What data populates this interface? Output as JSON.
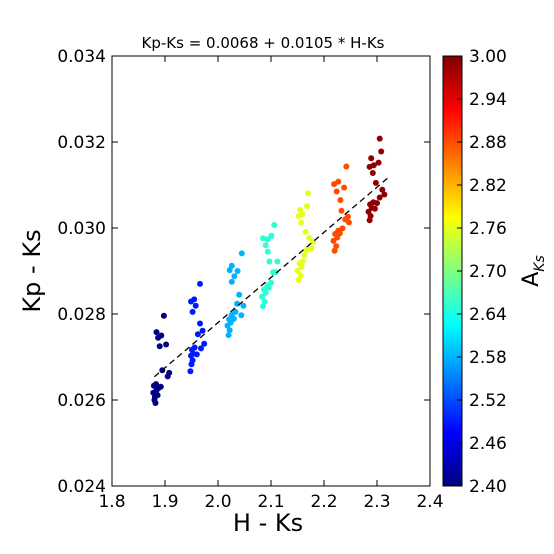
{
  "chart_data": {
    "type": "scatter",
    "title": "Kp-Ks = 0.0068 + 0.0105 * H-Ks",
    "xlabel": "H - Ks",
    "ylabel": "Kp - Ks",
    "xlim": [
      1.8,
      2.4
    ],
    "ylim": [
      0.024,
      0.034
    ],
    "xticks": [
      "1.8",
      "1.9",
      "2.0",
      "2.1",
      "2.2",
      "2.3",
      "2.4"
    ],
    "yticks": [
      "0.024",
      "0.026",
      "0.028",
      "0.030",
      "0.032",
      "0.034"
    ],
    "grid": false,
    "fit_line": {
      "intercept": 0.0068,
      "slope": 0.0105,
      "x_range": [
        1.88,
        2.32
      ],
      "style": "dashed"
    },
    "colorbar": {
      "label": "A",
      "label_subscript": "Ks",
      "min": 2.4,
      "max": 3.0,
      "ticks": [
        "2.40",
        "2.46",
        "2.52",
        "2.58",
        "2.64",
        "2.70",
        "2.76",
        "2.82",
        "2.88",
        "2.94",
        "3.00"
      ],
      "colormap": "jet"
    },
    "groups": [
      {
        "c": 2.4,
        "points": [
          [
            1.88,
            0.026
          ],
          [
            1.882,
            0.02593
          ],
          [
            1.878,
            0.02617
          ],
          [
            1.884,
            0.02622
          ],
          [
            1.879,
            0.02633
          ],
          [
            1.883,
            0.02637
          ],
          [
            1.886,
            0.02611
          ],
          [
            1.888,
            0.02628
          ],
          [
            1.892,
            0.02631
          ],
          [
            1.881,
            0.02607
          ],
          [
            1.895,
            0.02669
          ],
          [
            1.905,
            0.02655
          ],
          [
            1.908,
            0.02663
          ],
          [
            1.89,
            0.02725
          ],
          [
            1.887,
            0.02745
          ],
          [
            1.893,
            0.0275
          ],
          [
            1.902,
            0.02729
          ],
          [
            1.884,
            0.02758
          ],
          [
            1.898,
            0.02796
          ]
        ]
      },
      {
        "c": 2.49,
        "points": [
          [
            1.948,
            0.02667
          ],
          [
            1.95,
            0.02683
          ],
          [
            1.952,
            0.02692
          ],
          [
            1.949,
            0.02703
          ],
          [
            1.953,
            0.02708
          ],
          [
            1.951,
            0.02717
          ],
          [
            1.956,
            0.02722
          ],
          [
            1.96,
            0.02706
          ],
          [
            1.968,
            0.0272
          ],
          [
            1.974,
            0.02731
          ],
          [
            1.962,
            0.02753
          ],
          [
            1.971,
            0.02761
          ],
          [
            1.966,
            0.02778
          ],
          [
            1.952,
            0.02805
          ],
          [
            1.958,
            0.02819
          ],
          [
            1.949,
            0.02829
          ],
          [
            1.955,
            0.02834
          ],
          [
            1.966,
            0.0287
          ]
        ]
      },
      {
        "c": 2.58,
        "points": [
          [
            2.02,
            0.02751
          ],
          [
            2.022,
            0.02762
          ],
          [
            2.018,
            0.02773
          ],
          [
            2.024,
            0.0278
          ],
          [
            2.021,
            0.02788
          ],
          [
            2.026,
            0.02798
          ],
          [
            2.03,
            0.02789
          ],
          [
            2.033,
            0.02805
          ],
          [
            2.036,
            0.02824
          ],
          [
            2.044,
            0.02797
          ],
          [
            2.048,
            0.02819
          ],
          [
            2.04,
            0.02845
          ],
          [
            2.026,
            0.02875
          ],
          [
            2.031,
            0.02888
          ],
          [
            2.022,
            0.02902
          ],
          [
            2.026,
            0.02912
          ],
          [
            2.037,
            0.029
          ],
          [
            2.045,
            0.02941
          ]
        ]
      },
      {
        "c": 2.65,
        "points": [
          [
            2.085,
            0.02818
          ],
          [
            2.088,
            0.02829
          ],
          [
            2.083,
            0.0284
          ],
          [
            2.09,
            0.02849
          ],
          [
            2.087,
            0.02857
          ],
          [
            2.093,
            0.02866
          ],
          [
            2.096,
            0.02861
          ],
          [
            2.1,
            0.02873
          ],
          [
            2.104,
            0.02897
          ],
          [
            2.097,
            0.02922
          ],
          [
            2.109,
            0.02897
          ],
          [
            2.112,
            0.02922
          ],
          [
            2.094,
            0.02945
          ],
          [
            2.09,
            0.0296
          ],
          [
            2.085,
            0.02976
          ],
          [
            2.094,
            0.02974
          ],
          [
            2.101,
            0.02982
          ],
          [
            2.106,
            0.03007
          ]
        ]
      },
      {
        "c": 2.76,
        "points": [
          [
            2.152,
            0.02879
          ],
          [
            2.156,
            0.0289
          ],
          [
            2.15,
            0.02901
          ],
          [
            2.158,
            0.0291
          ],
          [
            2.154,
            0.02918
          ],
          [
            2.16,
            0.02923
          ],
          [
            2.163,
            0.02937
          ],
          [
            2.167,
            0.02948
          ],
          [
            2.172,
            0.02977
          ],
          [
            2.176,
            0.02953
          ],
          [
            2.18,
            0.02968
          ],
          [
            2.165,
            0.02991
          ],
          [
            2.157,
            0.03012
          ],
          [
            2.152,
            0.03028
          ],
          [
            2.159,
            0.03032
          ],
          [
            2.155,
            0.03042
          ],
          [
            2.168,
            0.03051
          ],
          [
            2.17,
            0.03081
          ]
        ]
      },
      {
        "c": 2.88,
        "points": [
          [
            2.22,
            0.02947
          ],
          [
            2.223,
            0.02958
          ],
          [
            2.218,
            0.0297
          ],
          [
            2.225,
            0.02978
          ],
          [
            2.221,
            0.02986
          ],
          [
            2.227,
            0.02994
          ],
          [
            2.23,
            0.02988
          ],
          [
            2.235,
            0.02999
          ],
          [
            2.24,
            0.0302
          ],
          [
            2.247,
            0.03013
          ],
          [
            2.233,
            0.0304
          ],
          [
            2.245,
            0.03026
          ],
          [
            2.231,
            0.03065
          ],
          [
            2.224,
            0.03085
          ],
          [
            2.219,
            0.03102
          ],
          [
            2.227,
            0.03108
          ],
          [
            2.238,
            0.03094
          ],
          [
            2.242,
            0.03143
          ]
        ]
      },
      {
        "c": 2.99,
        "points": [
          [
            2.286,
            0.03018
          ],
          [
            2.288,
            0.03028
          ],
          [
            2.284,
            0.03038
          ],
          [
            2.29,
            0.03047
          ],
          [
            2.287,
            0.03055
          ],
          [
            2.293,
            0.0306
          ],
          [
            2.296,
            0.03045
          ],
          [
            2.3,
            0.03058
          ],
          [
            2.305,
            0.03071
          ],
          [
            2.314,
            0.03078
          ],
          [
            2.31,
            0.03089
          ],
          [
            2.298,
            0.03105
          ],
          [
            2.292,
            0.03128
          ],
          [
            2.286,
            0.03142
          ],
          [
            2.294,
            0.03146
          ],
          [
            2.289,
            0.03162
          ],
          [
            2.303,
            0.03152
          ],
          [
            2.308,
            0.03178
          ],
          [
            2.305,
            0.03208
          ]
        ]
      }
    ]
  }
}
